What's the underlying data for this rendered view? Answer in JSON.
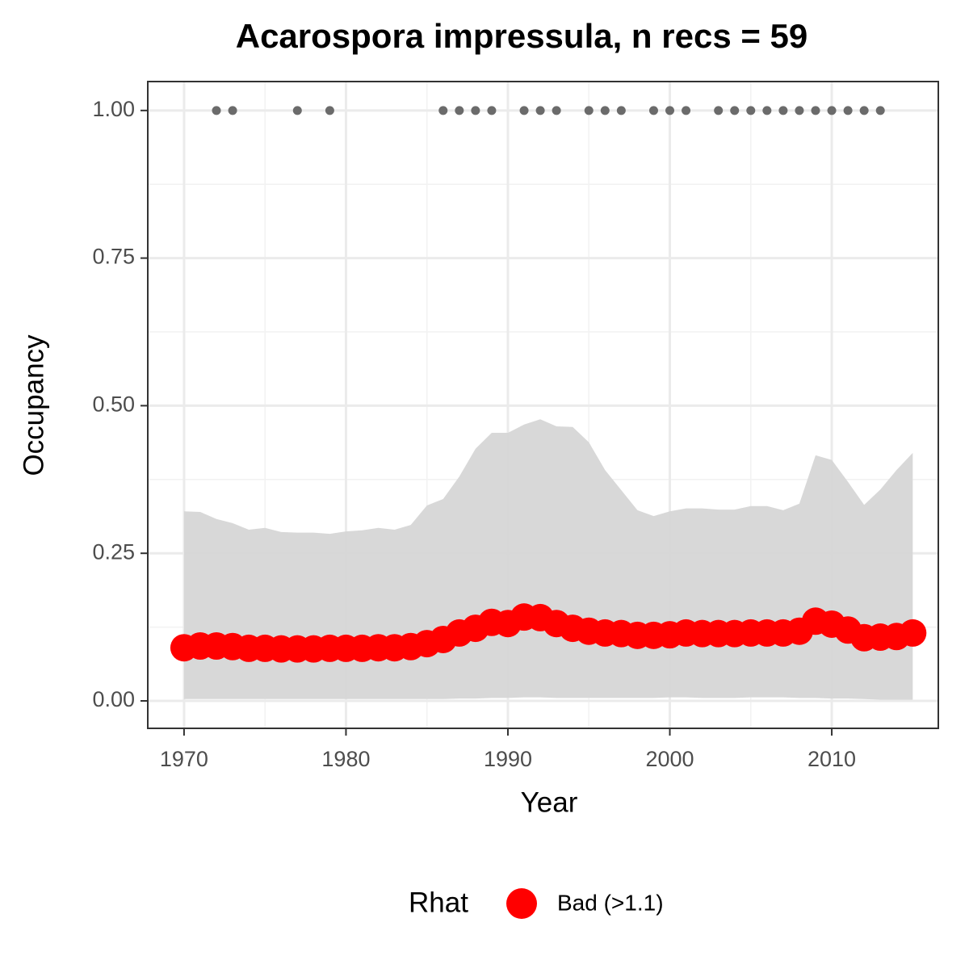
{
  "chart_data": {
    "type": "line",
    "title": "Acarospora impressula, n recs = 59",
    "x_label": "Year",
    "y_label": "Occupancy",
    "legend_title": "Rhat",
    "legend_position": "bottom",
    "x": [
      1970,
      1971,
      1972,
      1973,
      1974,
      1975,
      1976,
      1977,
      1978,
      1979,
      1980,
      1981,
      1982,
      1983,
      1984,
      1985,
      1986,
      1987,
      1988,
      1989,
      1990,
      1991,
      1992,
      1993,
      1994,
      1995,
      1996,
      1997,
      1998,
      1999,
      2000,
      2001,
      2002,
      2003,
      2004,
      2005,
      2006,
      2007,
      2008,
      2009,
      2010,
      2011,
      2012,
      2013,
      2014,
      2015
    ],
    "series": [
      {
        "name": "Bad (>1.1)",
        "color": "#ff0000",
        "values": [
          0.09,
          0.093,
          0.093,
          0.092,
          0.089,
          0.089,
          0.088,
          0.088,
          0.088,
          0.089,
          0.089,
          0.089,
          0.09,
          0.09,
          0.092,
          0.097,
          0.104,
          0.115,
          0.123,
          0.133,
          0.131,
          0.142,
          0.141,
          0.131,
          0.123,
          0.118,
          0.115,
          0.114,
          0.111,
          0.111,
          0.112,
          0.115,
          0.114,
          0.114,
          0.114,
          0.115,
          0.115,
          0.115,
          0.118,
          0.135,
          0.13,
          0.12,
          0.107,
          0.108,
          0.109,
          0.115
        ]
      }
    ],
    "band": {
      "color": "#d6d6d6",
      "lower": [
        0.003,
        0.003,
        0.003,
        0.003,
        0.003,
        0.003,
        0.003,
        0.003,
        0.003,
        0.003,
        0.003,
        0.003,
        0.003,
        0.003,
        0.003,
        0.003,
        0.003,
        0.004,
        0.004,
        0.005,
        0.005,
        0.006,
        0.006,
        0.005,
        0.005,
        0.005,
        0.005,
        0.005,
        0.005,
        0.005,
        0.006,
        0.006,
        0.005,
        0.005,
        0.005,
        0.006,
        0.006,
        0.006,
        0.005,
        0.005,
        0.004,
        0.004,
        0.003,
        0.002,
        0.002,
        0.002
      ],
      "upper": [
        0.321,
        0.32,
        0.308,
        0.301,
        0.29,
        0.293,
        0.286,
        0.285,
        0.285,
        0.283,
        0.287,
        0.289,
        0.293,
        0.29,
        0.298,
        0.331,
        0.342,
        0.38,
        0.427,
        0.454,
        0.454,
        0.468,
        0.477,
        0.465,
        0.464,
        0.438,
        0.391,
        0.357,
        0.323,
        0.313,
        0.321,
        0.326,
        0.326,
        0.324,
        0.324,
        0.33,
        0.33,
        0.323,
        0.334,
        0.416,
        0.408,
        0.371,
        0.332,
        0.358,
        0.391,
        0.42
      ]
    },
    "observed": {
      "color": "#6b6b6b",
      "x": [
        1972,
        1973,
        1977,
        1979,
        1986,
        1987,
        1988,
        1989,
        1991,
        1992,
        1993,
        1995,
        1996,
        1997,
        1999,
        2000,
        2001,
        2003,
        2004,
        2005,
        2006,
        2007,
        2008,
        2009,
        2010,
        2011,
        2012,
        2013
      ],
      "values": [
        1,
        1,
        1,
        1,
        1,
        1,
        1,
        1,
        1,
        1,
        1,
        1,
        1,
        1,
        1,
        1,
        1,
        1,
        1,
        1,
        1,
        1,
        1,
        1,
        1,
        1,
        1,
        1
      ]
    },
    "xlim": [
      1967.76,
      2016.58
    ],
    "xticks": [
      1970,
      1980,
      1990,
      2000,
      2010
    ],
    "ylim": [
      -0.0465,
      1.049
    ],
    "yticks": [
      {
        "value": 0,
        "label": "0.00"
      },
      {
        "value": 0.25,
        "label": "0.25"
      },
      {
        "value": 0.5,
        "label": "0.50"
      },
      {
        "value": 0.75,
        "label": "0.75"
      },
      {
        "value": 1,
        "label": "1.00"
      }
    ],
    "grid": true
  }
}
